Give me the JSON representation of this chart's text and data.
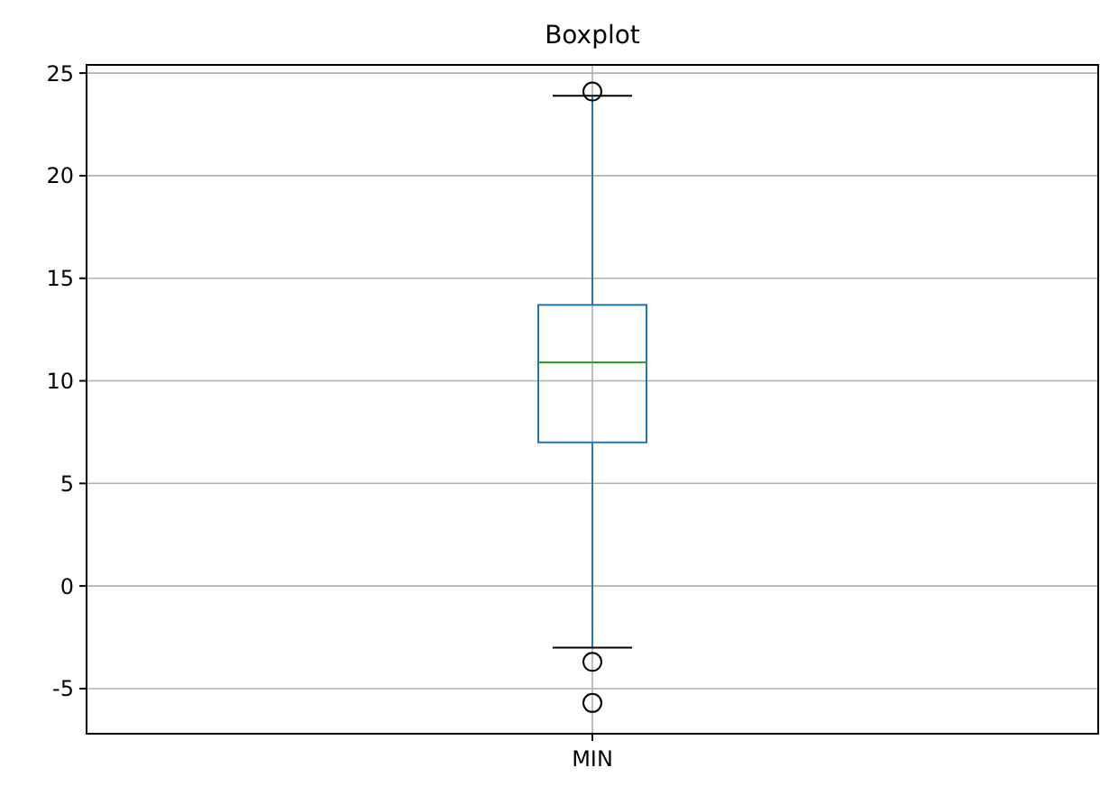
{
  "chart_data": {
    "type": "box",
    "title": "Boxplot",
    "categories": [
      "MIN"
    ],
    "color": "#1f77b4",
    "boxes": [
      {
        "low": -3.0,
        "q1": 7.0,
        "median": 10.9,
        "q3": 13.7,
        "high": 23.9,
        "outliers": [
          24.1,
          -3.7,
          -5.7
        ]
      }
    ],
    "ylim": [
      -7.2,
      25.4
    ],
    "yticks": [
      -5,
      0,
      5,
      10,
      15,
      20,
      25
    ],
    "grid": true
  }
}
